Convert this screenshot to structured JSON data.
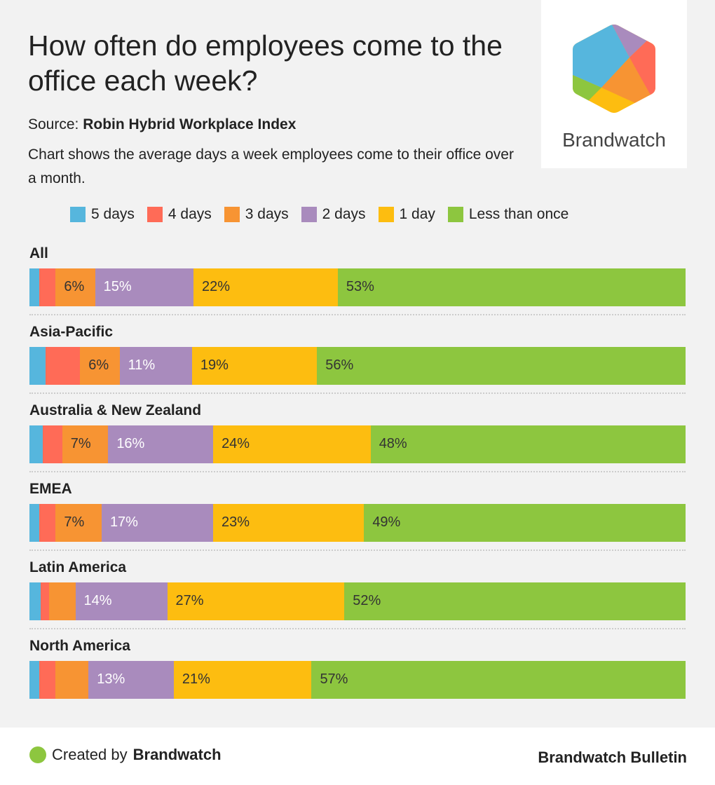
{
  "title": "How often do employees come to the office each week?",
  "source_label": "Source:",
  "source": "Robin Hybrid Workplace Index",
  "description": "Chart shows the average days a week employees come to their office over a month.",
  "logo_text": "Brandwatch",
  "footer": {
    "created_prefix": "Created by",
    "created_brand": "Brandwatch",
    "bulletin": "Brandwatch Bulletin"
  },
  "chart_data": {
    "type": "bar",
    "stacked": true,
    "orientation": "horizontal",
    "unit": "%",
    "legend_position": "top",
    "categories": [
      "All",
      "Asia-Pacific",
      "Australia & New Zealand",
      "EMEA",
      "Latin America",
      "North America"
    ],
    "series": [
      {
        "name": "5 days",
        "color": "#56b6dd",
        "values": [
          1.5,
          2.4,
          2,
          1.5,
          1.7,
          1.5
        ],
        "labels": [
          "",
          "",
          "",
          "",
          "",
          ""
        ]
      },
      {
        "name": "4 days",
        "color": "#ff6b57",
        "values": [
          2.5,
          5.3,
          3,
          2.5,
          1.3,
          2.5
        ],
        "labels": [
          "",
          "",
          "",
          "",
          "",
          ""
        ]
      },
      {
        "name": "3 days",
        "color": "#f79433",
        "values": [
          6,
          6,
          7,
          7,
          4,
          5
        ],
        "labels": [
          "6%",
          "6%",
          "7%",
          "7%",
          "",
          ""
        ]
      },
      {
        "name": "2 days",
        "color": "#a98bbd",
        "values": [
          15,
          11,
          16,
          17,
          14,
          13
        ],
        "labels": [
          "15%",
          "11%",
          "16%",
          "17%",
          "14%",
          "13%"
        ]
      },
      {
        "name": "1 day",
        "color": "#fdbd10",
        "values": [
          22,
          19,
          24,
          23,
          27,
          21
        ],
        "labels": [
          "22%",
          "19%",
          "24%",
          "23%",
          "27%",
          "21%"
        ]
      },
      {
        "name": "Less than once",
        "color": "#8dc63f",
        "values": [
          53,
          56,
          48,
          49,
          52,
          57
        ],
        "labels": [
          "53%",
          "56%",
          "48%",
          "49%",
          "52%",
          "57%"
        ]
      }
    ]
  }
}
